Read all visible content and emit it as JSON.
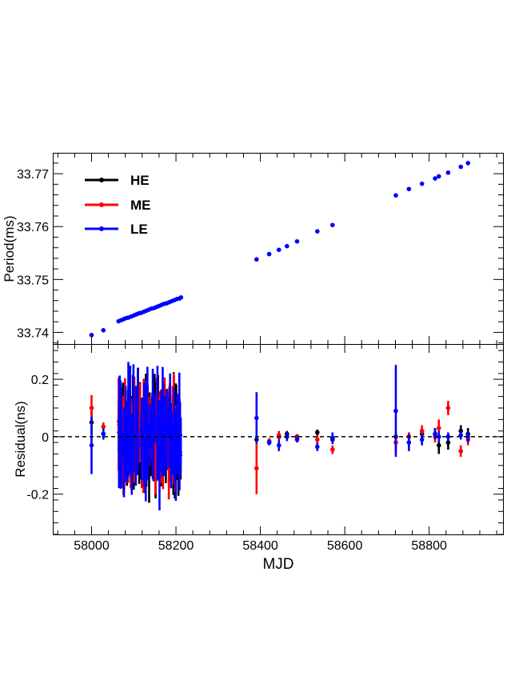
{
  "colors": {
    "HE": "#000000",
    "ME": "#ff0000",
    "LE": "#0000ff",
    "zero_line": "#000000"
  },
  "chart_data": [
    {
      "type": "scatter",
      "panel": "top",
      "title": "",
      "xlabel": "",
      "ylabel": "Period(ms)",
      "xlim": [
        57910,
        58975
      ],
      "ylim": [
        33.7378,
        33.7738
      ],
      "yticks": [
        33.74,
        33.75,
        33.76,
        33.77
      ],
      "ytick_labels": [
        "33.74",
        "33.75",
        "33.76",
        "33.77"
      ],
      "legend_position": "top-left",
      "legend": [
        {
          "name": "HE",
          "color": "#000000"
        },
        {
          "name": "ME",
          "color": "#ff0000"
        },
        {
          "name": "LE",
          "color": "#0000ff"
        }
      ],
      "series": [
        {
          "name": "LE",
          "color": "#0000ff",
          "x": [
            58000,
            58028,
            58064,
            58070,
            58076,
            58082,
            58088,
            58094,
            58100,
            58106,
            58112,
            58118,
            58124,
            58130,
            58136,
            58142,
            58148,
            58154,
            58160,
            58166,
            58172,
            58178,
            58184,
            58190,
            58196,
            58202,
            58208,
            58212,
            58391,
            58421,
            58444,
            58463,
            58487,
            58535,
            58571,
            58721,
            58752,
            58783,
            58814,
            58823,
            58845,
            58875,
            58892
          ],
          "y": [
            33.7395,
            33.7404,
            33.7421,
            33.7423,
            33.7425,
            33.7427,
            33.7428,
            33.743,
            33.7432,
            33.7434,
            33.7436,
            33.7437,
            33.7439,
            33.7441,
            33.7443,
            33.7445,
            33.7446,
            33.7448,
            33.745,
            33.7452,
            33.7454,
            33.7455,
            33.7457,
            33.7459,
            33.7461,
            33.7463,
            33.7464,
            33.7466,
            33.7538,
            33.7548,
            33.7556,
            33.7563,
            33.7572,
            33.7591,
            33.7603,
            33.7659,
            33.7671,
            33.7681,
            33.7691,
            33.7695,
            33.7702,
            33.7713,
            33.772
          ]
        }
      ]
    },
    {
      "type": "scatter",
      "panel": "bottom",
      "title": "",
      "xlabel": "MJD",
      "ylabel": "Residual(ns)",
      "xlim": [
        57910,
        58975
      ],
      "ylim": [
        -0.34,
        0.32
      ],
      "xticks": [
        58000,
        58200,
        58400,
        58600,
        58800
      ],
      "xtick_labels": [
        "58000",
        "58200",
        "58400",
        "58600",
        "58800"
      ],
      "yticks": [
        -0.2,
        0,
        0.2
      ],
      "ytick_labels": [
        "-0.2",
        "0",
        "0.2"
      ],
      "reference_line": 0,
      "dense_region": {
        "x_range": [
          58064,
          58212
        ],
        "note": "many overlapping points with large error bars"
      },
      "series": [
        {
          "name": "HE",
          "color": "#000000",
          "x": [
            58000,
            58028,
            58391,
            58421,
            58444,
            58463,
            58487,
            58535,
            58571,
            58721,
            58752,
            58783,
            58814,
            58823,
            58845,
            58875,
            58892
          ],
          "y": [
            0.05,
            0.01,
            -0.01,
            -0.02,
            0.0,
            0.01,
            0.0,
            0.015,
            -0.01,
            0.0,
            0.0,
            0.01,
            0.01,
            -0.03,
            -0.02,
            0.02,
            0.01
          ],
          "err": [
            0.04,
            0.015,
            0.01,
            0.008,
            0.01,
            0.01,
            0.008,
            0.01,
            0.015,
            0.015,
            0.015,
            0.015,
            0.02,
            0.03,
            0.025,
            0.02,
            0.02
          ]
        },
        {
          "name": "ME",
          "color": "#ff0000",
          "x": [
            58000,
            58028,
            58391,
            58421,
            58444,
            58463,
            58487,
            58535,
            58571,
            58721,
            58752,
            58783,
            58814,
            58823,
            58845,
            58875,
            58892
          ],
          "y": [
            0.1,
            0.035,
            -0.11,
            -0.015,
            0.005,
            0.0,
            -0.005,
            -0.01,
            -0.045,
            -0.02,
            0.0,
            0.02,
            0.0,
            0.03,
            0.1,
            -0.05,
            -0.01
          ],
          "err": [
            0.045,
            0.015,
            0.09,
            0.01,
            0.015,
            0.01,
            0.01,
            0.015,
            0.015,
            0.03,
            0.015,
            0.02,
            0.02,
            0.03,
            0.025,
            0.02,
            0.02
          ]
        },
        {
          "name": "LE",
          "color": "#0000ff",
          "x": [
            58000,
            58028,
            58391,
            58421,
            58444,
            58463,
            58487,
            58535,
            58571,
            58721,
            58752,
            58783,
            58814,
            58823,
            58845,
            58875,
            58892
          ],
          "y": [
            -0.03,
            0.01,
            0.065,
            -0.02,
            -0.03,
            0.0,
            -0.01,
            -0.035,
            -0.005,
            0.09,
            -0.02,
            -0.01,
            0.01,
            0.0,
            0.0,
            0.005,
            0.0
          ],
          "err": [
            0.1,
            0.02,
            0.09,
            0.01,
            0.02,
            0.015,
            0.01,
            0.015,
            0.02,
            0.16,
            0.03,
            0.02,
            0.02,
            0.02,
            0.015,
            0.015,
            0.02
          ]
        }
      ]
    }
  ]
}
